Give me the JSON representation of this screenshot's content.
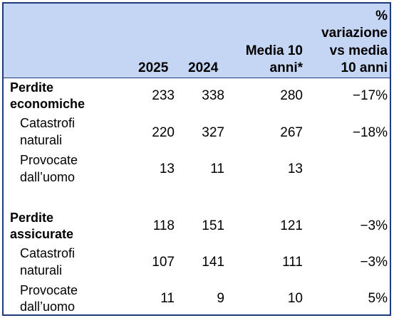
{
  "header": {
    "col_2025": "2025",
    "col_2024": "2024",
    "col_avg_line1": "Media 10",
    "col_avg_line2": "anni*",
    "col_var_line1": "%",
    "col_var_line2": "variazione",
    "col_var_line3": "vs media",
    "col_var_line4": "10 anni"
  },
  "rows": [
    {
      "label_line1": "Perdite",
      "label_line2": "economiche",
      "v2025": "233",
      "v2024": "338",
      "avg": "280",
      "var": "−17%"
    },
    {
      "label_line1": "Catastrofi",
      "label_line2": "naturali",
      "v2025": "220",
      "v2024": "327",
      "avg": "267",
      "var": "−18%"
    },
    {
      "label_line1": "Provocate",
      "label_line2": "dall’uomo",
      "v2025": "13",
      "v2024": "11",
      "avg": "13",
      "var": ""
    },
    {
      "label_line1": "Perdite",
      "label_line2": "assicurate",
      "v2025": "118",
      "v2024": "151",
      "avg": "121",
      "var": "−3%"
    },
    {
      "label_line1": "Catastrofi",
      "label_line2": "naturali",
      "v2025": "107",
      "v2024": "141",
      "avg": "111",
      "var": "−3%"
    },
    {
      "label_line1": "Provocate",
      "label_line2": "dall’uomo",
      "v2025": "11",
      "v2024": "9",
      "avg": "10",
      "var": "5%"
    }
  ]
}
